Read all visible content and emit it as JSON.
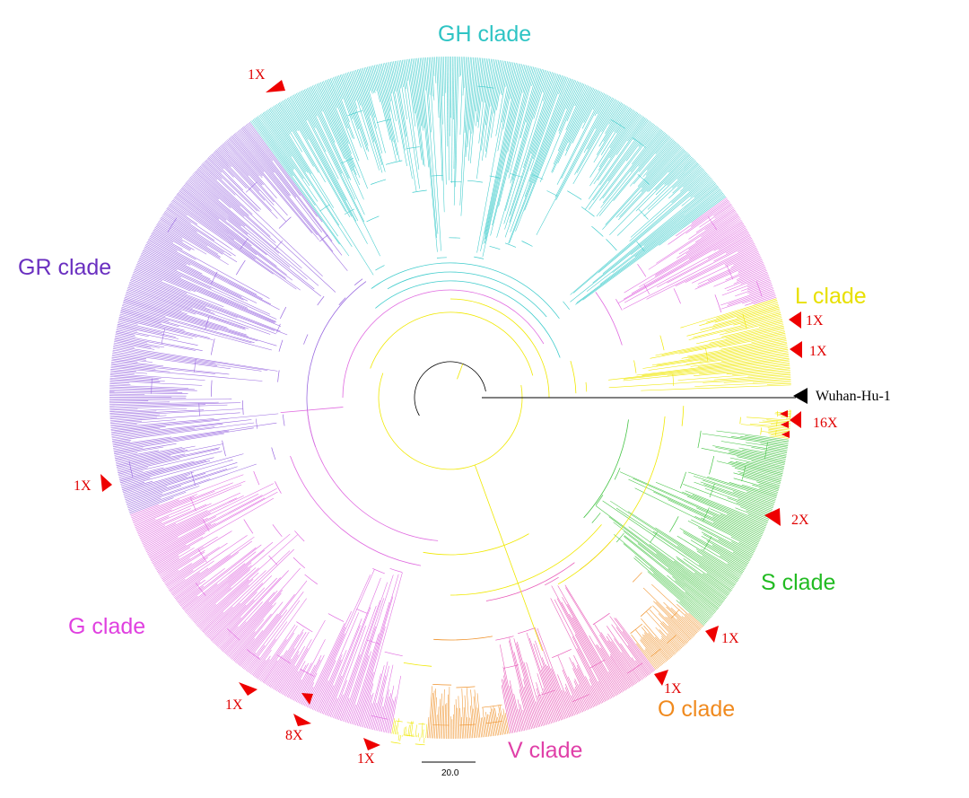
{
  "tree": {
    "clades": [
      {
        "name": "GH clade",
        "color": "#40cccc",
        "label_color": "#2ec4c4"
      },
      {
        "name": "GR clade",
        "color": "#9a6ae0",
        "label_color": "#6a2fc0"
      },
      {
        "name": "L clade",
        "color": "#f0e800",
        "label_color": "#e8e000"
      },
      {
        "name": "S clade",
        "color": "#45c445",
        "label_color": "#22bb22"
      },
      {
        "name": "O clade",
        "color": "#f0922a",
        "label_color": "#f08a1e"
      },
      {
        "name": "V clade",
        "color": "#e85ab8",
        "label_color": "#e040a8"
      },
      {
        "name": "G clade",
        "color": "#e06ae0",
        "label_color": "#e040e0"
      }
    ],
    "reference": {
      "name": "Wuhan-Hu-1",
      "color": "#000000"
    },
    "markers": [
      {
        "label": "1X",
        "color": "#ee0000"
      },
      {
        "label": "1X",
        "color": "#ee0000"
      },
      {
        "label": "1X",
        "color": "#ee0000"
      },
      {
        "label": "16X",
        "color": "#ee0000"
      },
      {
        "label": "2X",
        "color": "#ee0000"
      },
      {
        "label": "1X",
        "color": "#ee0000"
      },
      {
        "label": "1X",
        "color": "#ee0000"
      },
      {
        "label": "1X",
        "color": "#ee0000"
      },
      {
        "label": "1X",
        "color": "#ee0000"
      },
      {
        "label": "8X",
        "color": "#ee0000"
      },
      {
        "label": "1X",
        "color": "#ee0000"
      }
    ],
    "scale_bar": {
      "value": "20.0"
    }
  }
}
